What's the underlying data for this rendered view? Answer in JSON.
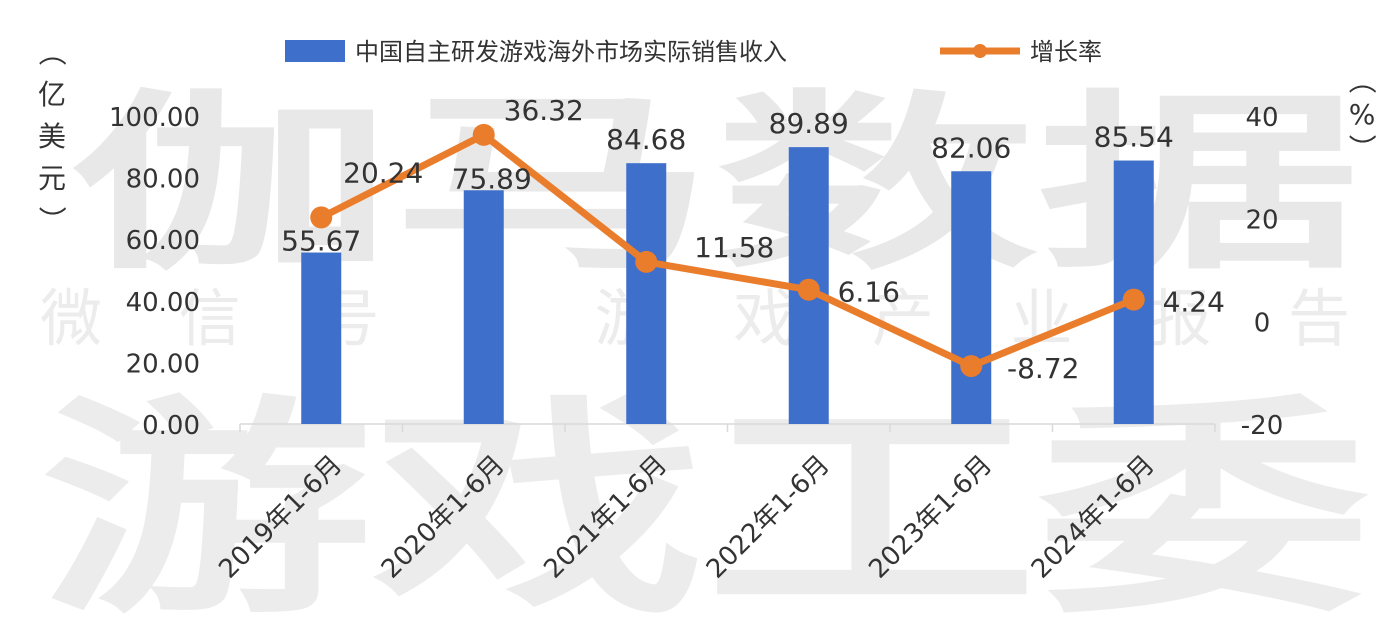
{
  "watermark": {
    "line1": "伽马数据",
    "line2": "微信号：游戏产业报告",
    "line3": "游戏工委"
  },
  "left_axis_unit": [
    "（",
    "亿",
    "美",
    "元",
    "）"
  ],
  "right_axis_unit": [
    "（",
    "%",
    "）"
  ],
  "colors": {
    "bar": "#3E6FCB",
    "line": "#EA7D2C",
    "grid": "#d9d9d9"
  },
  "chart_data": {
    "type": "bar+line",
    "categories": [
      "2019年1-6月",
      "2020年1-6月",
      "2021年1-6月",
      "2022年1-6月",
      "2023年1-6月",
      "2024年1-6月"
    ],
    "series": [
      {
        "name": "中国自主研发游戏海外市场实际销售收入",
        "type": "bar",
        "axis": "left",
        "values": [
          55.67,
          75.89,
          84.68,
          89.89,
          82.06,
          85.54
        ],
        "labels": [
          "55.67",
          "75.89",
          "84.68",
          "89.89",
          "82.06",
          "85.54"
        ]
      },
      {
        "name": "增长率",
        "type": "line",
        "axis": "right",
        "values": [
          20.24,
          36.32,
          11.58,
          6.16,
          -8.72,
          4.24
        ],
        "labels": [
          "20.24",
          "36.32",
          "11.58",
          "6.16",
          "-8.72",
          "4.24"
        ]
      }
    ],
    "left_axis": {
      "min": 0,
      "max": 100,
      "ticks": [
        "0.00",
        "20.00",
        "40.00",
        "60.00",
        "80.00",
        "100.00"
      ]
    },
    "right_axis": {
      "min": -20,
      "max": 40,
      "ticks": [
        "-20",
        "0",
        "20",
        "40"
      ]
    },
    "legend_position": "top-center"
  }
}
